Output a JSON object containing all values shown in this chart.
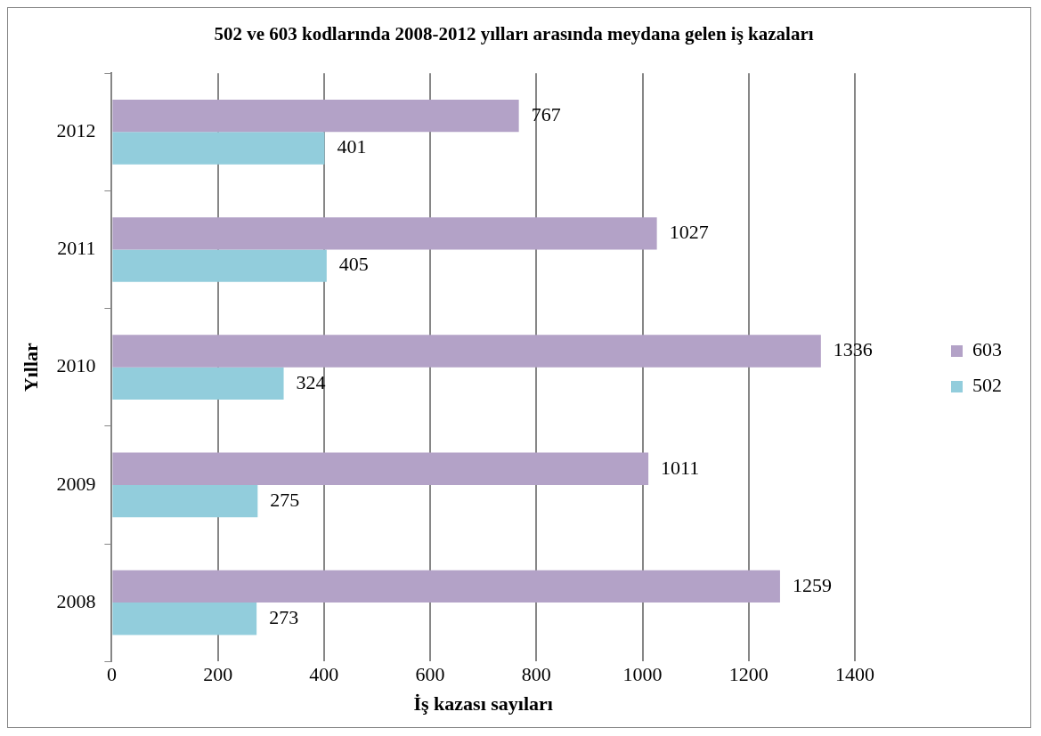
{
  "chart_data": {
    "type": "bar",
    "orientation": "horizontal",
    "title": "502 ve 603 kodlarında 2008-2012 yılları arasında meydana gelen iş kazaları",
    "xlabel": "İş kazası sayıları",
    "ylabel": "Yıllar",
    "categories": [
      "2012",
      "2011",
      "2010",
      "2009",
      "2008"
    ],
    "series": [
      {
        "name": "603",
        "color": "#b3a2c7",
        "values": [
          767,
          1027,
          1336,
          1011,
          1259
        ]
      },
      {
        "name": "502",
        "color": "#92cddc",
        "values": [
          401,
          405,
          324,
          275,
          273
        ]
      }
    ],
    "xlim": [
      0,
      1400
    ],
    "xticks": [
      0,
      200,
      400,
      600,
      800,
      1000,
      1200,
      1400
    ],
    "grid": "x",
    "legend": "right",
    "data_labels": true
  }
}
